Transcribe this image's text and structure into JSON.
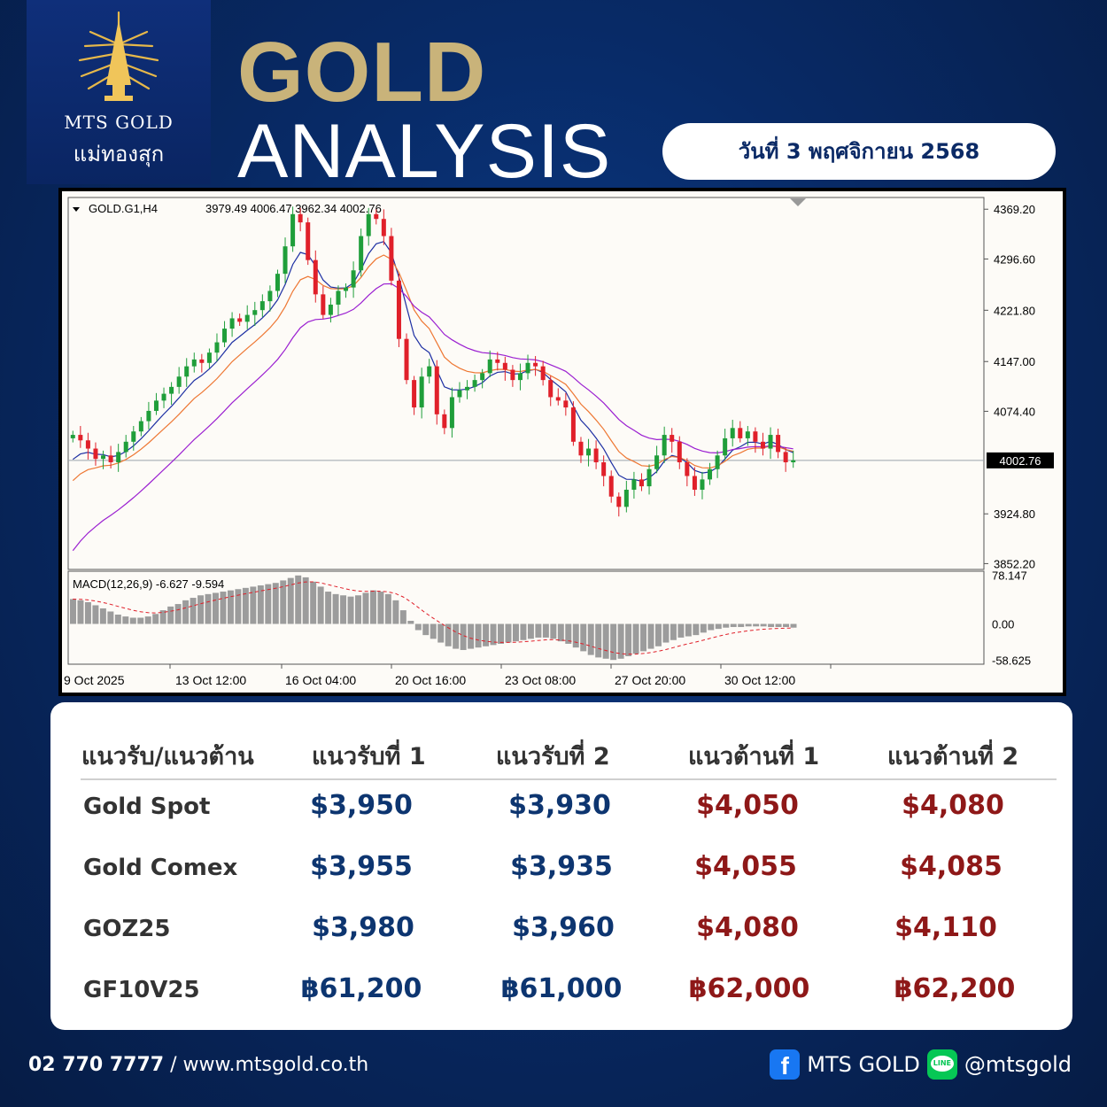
{
  "brand": {
    "name_en": "MTS GOLD",
    "name_th": "แม่ทองสุก",
    "logo_icon": "golden-tree-icon"
  },
  "header": {
    "title_line1": "GOLD",
    "title_line2": "ANALYSIS",
    "date": "วันที่ 3 พฤศจิกายน 2568"
  },
  "colors": {
    "gold": "#c9b37a",
    "navy": "#0b2a66",
    "support": "#0d3570",
    "resistance": "#8e1818"
  },
  "chart_data": {
    "type": "candlestick",
    "symbol_info": "GOLD.G1,H4",
    "ohlc": "3979.49 4006.47 3962.34 4002.76",
    "current_price_label": "4002.76",
    "current_price": 4002.76,
    "price_ticks": [
      "4369.20",
      "4296.60",
      "4221.80",
      "4147.00",
      "4074.40",
      "3924.80",
      "3852.20"
    ],
    "time_labels": [
      "9 Oct 2025",
      "13 Oct 12:00",
      "16 Oct 04:00",
      "20 Oct 16:00",
      "23 Oct 08:00",
      "27 Oct 20:00",
      "30 Oct 12:00"
    ],
    "ylim": [
      3845,
      4385
    ],
    "price_path": [
      4035,
      4040,
      4032,
      4020,
      4005,
      4010,
      4000,
      4015,
      4030,
      4045,
      4060,
      4075,
      4090,
      4100,
      4110,
      4125,
      4140,
      4150,
      4145,
      4160,
      4175,
      4195,
      4210,
      4205,
      4215,
      4222,
      4235,
      4250,
      4275,
      4315,
      4362,
      4350,
      4295,
      4245,
      4215,
      4230,
      4250,
      4255,
      4280,
      4330,
      4362,
      4355,
      4330,
      4265,
      4180,
      4120,
      4080,
      4125,
      4140,
      4070,
      4050,
      4095,
      4105,
      4110,
      4120,
      4130,
      4150,
      4145,
      4135,
      4120,
      4130,
      4145,
      4140,
      4120,
      4095,
      4090,
      4080,
      4030,
      4010,
      4020,
      4000,
      3980,
      3950,
      3935,
      3960,
      3975,
      3965,
      3990,
      4010,
      4040,
      4030,
      4000,
      3980,
      3960,
      3975,
      3990,
      4010,
      4035,
      4050,
      4035,
      4045,
      4030,
      4020,
      4040,
      4015,
      4000,
      4003
    ],
    "macd": {
      "label": "MACD(12,26,9) -6.627 -9.594",
      "ticks": [
        "78.147",
        "0.00",
        "-58.625"
      ],
      "ylim": [
        -62,
        82
      ],
      "hist": [
        40,
        38,
        35,
        30,
        25,
        20,
        15,
        12,
        10,
        10,
        12,
        16,
        22,
        28,
        32,
        38,
        42,
        46,
        48,
        50,
        52,
        54,
        56,
        58,
        60,
        62,
        64,
        66,
        70,
        74,
        78,
        75,
        68,
        60,
        52,
        48,
        46,
        44,
        46,
        50,
        54,
        52,
        48,
        38,
        22,
        5,
        -10,
        -18,
        -24,
        -30,
        -36,
        -40,
        -42,
        -40,
        -38,
        -36,
        -34,
        -32,
        -30,
        -28,
        -26,
        -24,
        -22,
        -22,
        -24,
        -28,
        -32,
        -38,
        -44,
        -50,
        -54,
        -56,
        -58,
        -56,
        -52,
        -48,
        -44,
        -40,
        -36,
        -30,
        -26,
        -22,
        -20,
        -18,
        -14,
        -10,
        -8,
        -6,
        -5,
        -5,
        -4,
        -4,
        -4,
        -5,
        -5,
        -5,
        -6
      ]
    }
  },
  "table": {
    "headers": [
      "แนวรับ/แนวต้าน",
      "แนวรับที่ 1",
      "แนวรับที่ 2",
      "แนวต้านที่ 1",
      "แนวต้านที่ 2"
    ],
    "rows": [
      {
        "label": "Gold Spot",
        "s1": "$3,950",
        "s2": "$3,930",
        "r1": "$4,050",
        "r2": "$4,080"
      },
      {
        "label": "Gold Comex",
        "s1": "$3,955",
        "s2": "$3,935",
        "r1": "$4,055",
        "r2": "$4,085"
      },
      {
        "label": "GOZ25",
        "s1": "$3,980",
        "s2": "$3,960",
        "r1": "$4,080",
        "r2": "$4,110"
      },
      {
        "label": "GF10V25",
        "s1": "฿61,200",
        "s2": "฿61,000",
        "r1": "฿62,000",
        "r2": "฿62,200"
      }
    ]
  },
  "footer": {
    "phone": "02 770 7777",
    "separator": " / ",
    "website": "www.mtsgold.co.th",
    "facebook_icon": "facebook-icon",
    "facebook_name": "MTS GOLD",
    "line_icon": "line-app-icon",
    "line_id": "@mtsgold"
  }
}
